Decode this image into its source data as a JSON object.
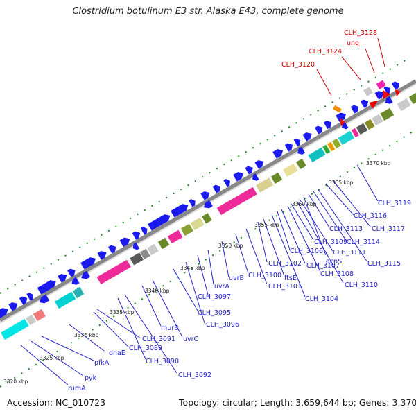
{
  "title": "Clostridium botulinum E3 str. Alaska E43, complete genome",
  "accession": "Accession: NC_010723",
  "summary": "Topology: circular; Length: 3,659,644 bp; Genes: 3,370",
  "colors": {
    "backbone": "#777777",
    "forward_arrow": "#1a1aee",
    "reverse_arrow": "#1a1aee",
    "rna_arrow": "#ee0000",
    "label_blue": "#2222cc",
    "label_red": "#cc0000",
    "tick_green": "#228822"
  },
  "scale_labels": [
    "3320 kbp",
    "3325 kbp",
    "3330 kbp",
    "3335 kbp",
    "3340 kbp",
    "3345 kbp",
    "3350 kbp",
    "3355 kbp",
    "3360 kbp",
    "3365 kbp",
    "3370 kbp"
  ],
  "gene_labels_red": [
    "CLH_3120",
    "CLH_3124",
    "ung",
    "CLH_3128"
  ],
  "gene_labels_blue": [
    "rumA",
    "pyk",
    "pfkA",
    "dnaE",
    "CLH_3089",
    "CLH_3090",
    "CLH_3092",
    "CLH_3091",
    "murB",
    "uvrC",
    "CLH_3095",
    "CLH_3096",
    "CLH_3097",
    "uvrA",
    "uvrB",
    "CLH_3100",
    "CLH_3101",
    "CLH_3102",
    "ftsE",
    "CLH_3104",
    "CLH_3106",
    "CLH_3107",
    "CLH_3108",
    "CLH_3109",
    "CLH_3110",
    "CLH_3111",
    "acpS",
    "CLH_3113",
    "CLH_3114",
    "CLH_3115",
    "CLH_3116",
    "CLH_3117",
    "CLH_3119"
  ]
}
